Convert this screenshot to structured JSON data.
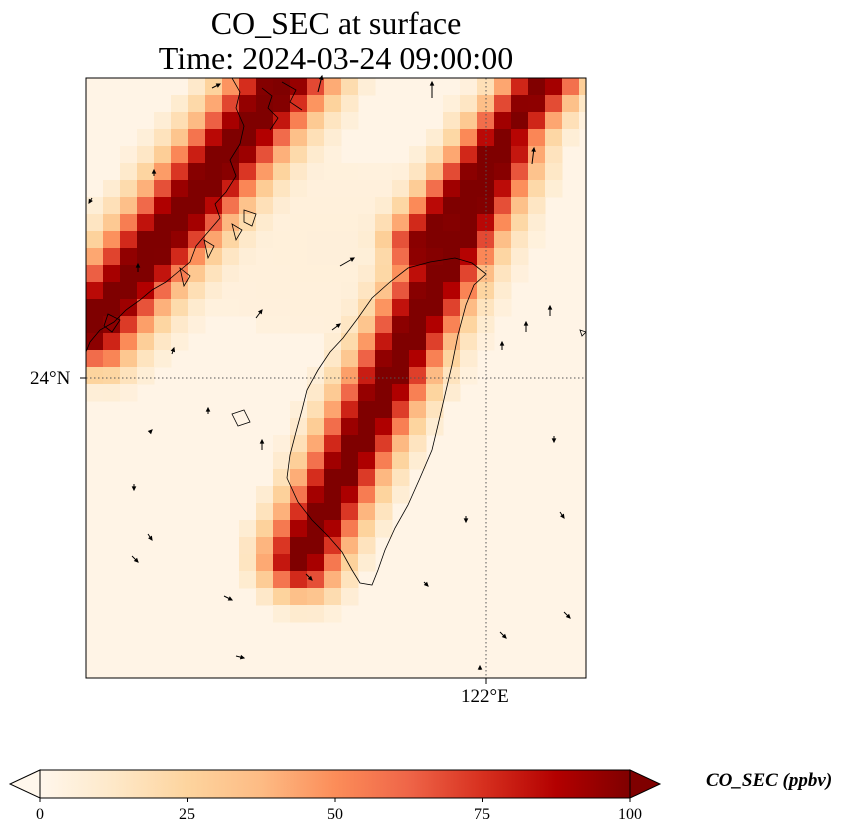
{
  "title": {
    "line1": "CO_SEC at surface",
    "line2": "Time: 2024-03-24 09:00:00"
  },
  "map": {
    "projection": "PlateCarree",
    "grid_style": "dotted",
    "coastline_color": "#000000",
    "background_color": "#fff4e6",
    "latitude_label": "24°N",
    "longitude_label": "122°E"
  },
  "colorbar": {
    "colormap": "OrRd",
    "colors": [
      "#fff7ec",
      "#fee8c8",
      "#fdd49e",
      "#fdbb84",
      "#fc8d59",
      "#ef6548",
      "#d7301f",
      "#b30000",
      "#7f0000"
    ],
    "ticks": [
      "0",
      "25",
      "50",
      "75",
      "100"
    ],
    "extend": "both",
    "label": "CO_SEC (ppbv)"
  }
}
